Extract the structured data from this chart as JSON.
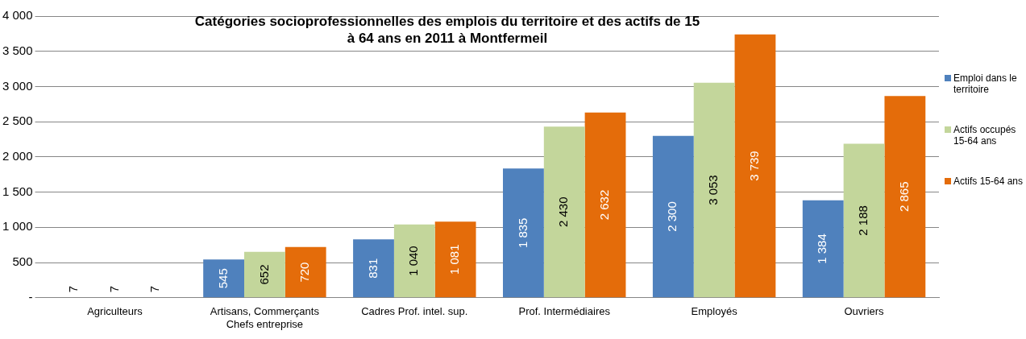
{
  "chart_data": {
    "type": "bar",
    "title": "Catégories socioprofessionnelles des emplois du territoire et des actifs de 15 à 64 ans en 2011 à Montfermeil",
    "categories": [
      "Agriculteurs",
      "Artisans, Commerçants Chefs entreprise",
      "Cadres Prof. intel. sup.",
      "Prof. Intermédiaires",
      "Employés",
      "Ouvriers"
    ],
    "series": [
      {
        "name": "Emploi dans le territoire",
        "color": "#4f81bd",
        "values": [
          7,
          545,
          831,
          1835,
          2300,
          1384
        ]
      },
      {
        "name": "Actifs occupés 15-64 ans",
        "color": "#c3d69b",
        "values": [
          7,
          652,
          1040,
          2430,
          3053,
          2188
        ]
      },
      {
        "name": "Actifs 15-64 ans",
        "color": "#e46c0a",
        "values": [
          7,
          720,
          1081,
          2632,
          3739,
          2865
        ]
      }
    ],
    "value_labels": [
      [
        "7",
        "545",
        "831",
        "1 835",
        "2 300",
        "1 384"
      ],
      [
        "7",
        "652",
        "1 040",
        "2 430",
        "3 053",
        "2 188"
      ],
      [
        "7",
        "720",
        "1 081",
        "2 632",
        "3 739",
        "2 865"
      ]
    ],
    "ylim": [
      0,
      4000
    ],
    "yticks": [
      {
        "value": 0,
        "label": "-"
      },
      {
        "value": 500,
        "label": "500"
      },
      {
        "value": 1000,
        "label": "1 000"
      },
      {
        "value": 1500,
        "label": "1 500"
      },
      {
        "value": 2000,
        "label": "2 000"
      },
      {
        "value": 2500,
        "label": "2 500"
      },
      {
        "value": 3000,
        "label": "3 000"
      },
      {
        "value": 3500,
        "label": "3 500"
      },
      {
        "value": 4000,
        "label": "4 000"
      }
    ],
    "grid": "y",
    "legend": "right"
  }
}
